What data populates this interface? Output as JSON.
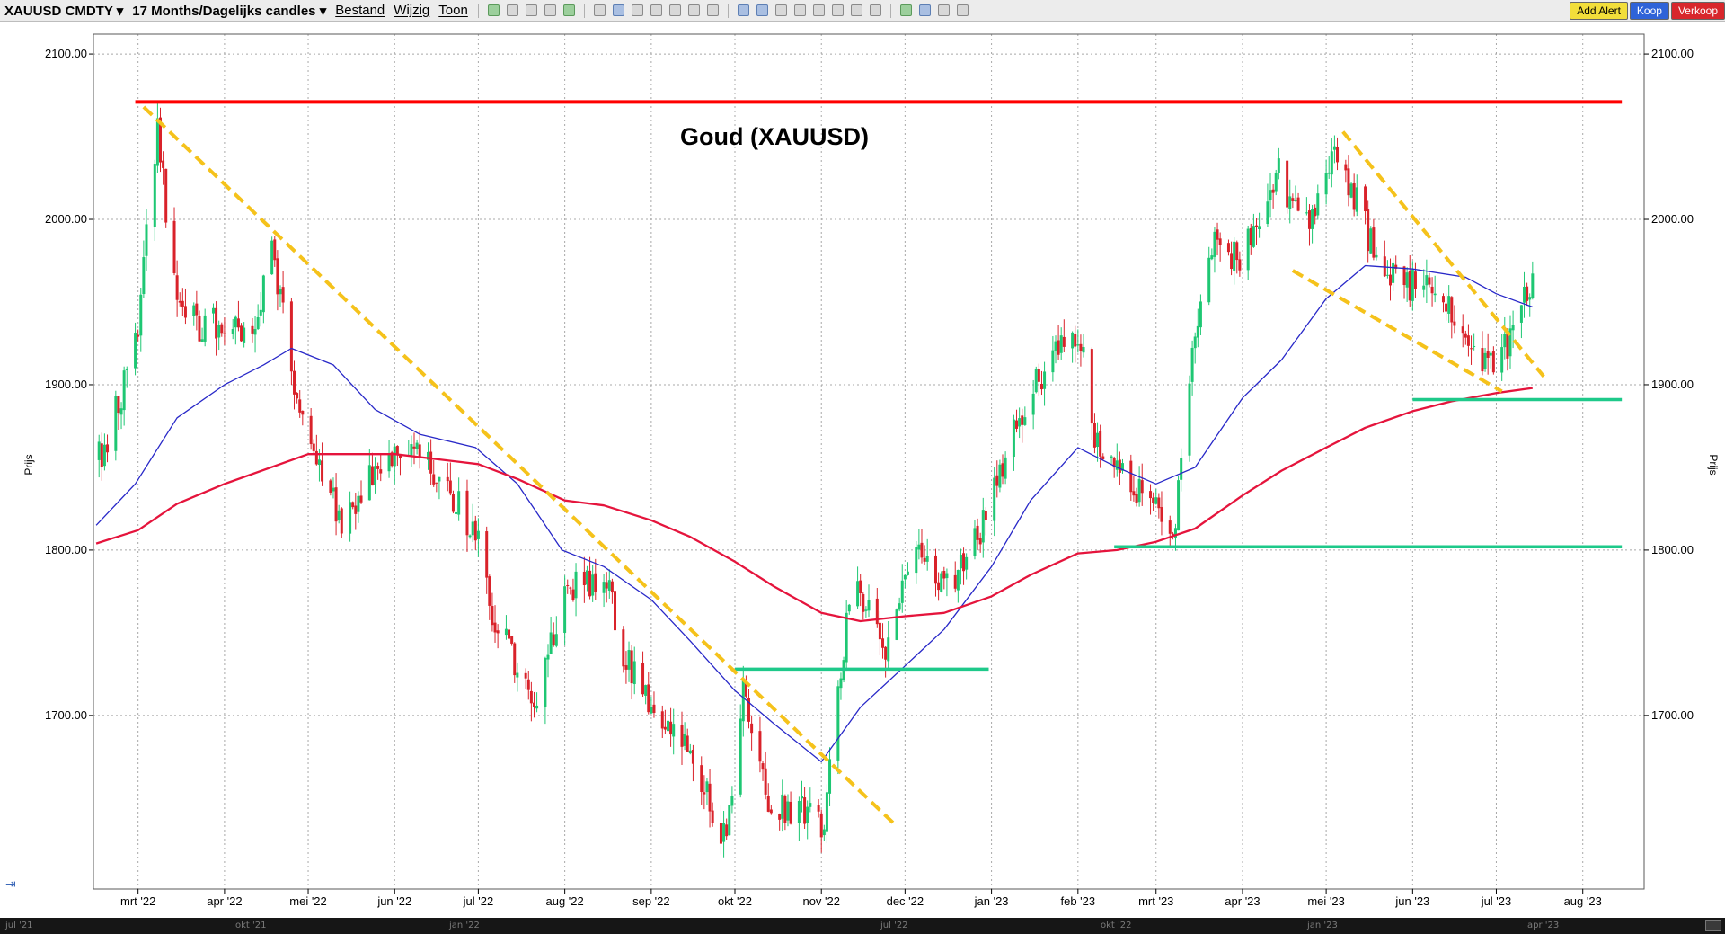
{
  "toolbar": {
    "symbol": "XAUUSD CMDTY",
    "period": "17 Months/Dagelijks candles",
    "menus": [
      "Bestand",
      "Wijzig",
      "Toon"
    ],
    "add_alert": "Add Alert",
    "buy": "Koop",
    "sell": "Verkoop"
  },
  "colors": {
    "up_candle": "#1ec773",
    "down_candle": "#d9222a",
    "ma_short": "#2828c8",
    "ma_long": "#e5143c",
    "resistance": "#ff0000",
    "trendline": "#f5c21b",
    "support": "#1ec98a"
  },
  "navigator": {
    "labels": [
      "jul '21",
      "okt '21",
      "jan '22",
      "jul '22",
      "okt '22",
      "jan '23",
      "apr '23"
    ]
  },
  "chart_data": {
    "type": "candlestick",
    "title": "Goud (XAUUSD)",
    "ylabel": "Prijs",
    "ylim": [
      1595,
      2112
    ],
    "yticks": [
      1700,
      1800,
      1900,
      2000,
      2100
    ],
    "ytick_labels": [
      "1700.00",
      "1800.00",
      "1900.00",
      "2000.00",
      "2100.00"
    ],
    "xrange": [
      "2022-02-13",
      "2023-08-23"
    ],
    "x_ticks": [
      {
        "date": "2022-03-01",
        "label": "mrt '22"
      },
      {
        "date": "2022-04-01",
        "label": "apr '22"
      },
      {
        "date": "2022-05-01",
        "label": "mei '22"
      },
      {
        "date": "2022-06-01",
        "label": "jun '22"
      },
      {
        "date": "2022-07-01",
        "label": "jul '22"
      },
      {
        "date": "2022-08-01",
        "label": "aug '22"
      },
      {
        "date": "2022-09-01",
        "label": "sep '22"
      },
      {
        "date": "2022-10-01",
        "label": "okt '22"
      },
      {
        "date": "2022-11-01",
        "label": "nov '22"
      },
      {
        "date": "2022-12-01",
        "label": "dec '22"
      },
      {
        "date": "2023-01-01",
        "label": "jan '23"
      },
      {
        "date": "2023-02-01",
        "label": "feb '23"
      },
      {
        "date": "2023-03-01",
        "label": "mrt '23"
      },
      {
        "date": "2023-04-01",
        "label": "apr '23"
      },
      {
        "date": "2023-05-01",
        "label": "mei '23"
      },
      {
        "date": "2023-06-01",
        "label": "jun '23"
      },
      {
        "date": "2023-07-01",
        "label": "jul '23"
      },
      {
        "date": "2023-08-01",
        "label": "aug '23"
      }
    ],
    "grid": true,
    "price_path": [
      [
        "2022-02-15",
        1855
      ],
      [
        "2022-02-24",
        1900
      ],
      [
        "2022-03-01",
        1940
      ],
      [
        "2022-03-08",
        2055
      ],
      [
        "2022-03-14",
        1960
      ],
      [
        "2022-03-22",
        1935
      ],
      [
        "2022-03-31",
        1940
      ],
      [
        "2022-04-12",
        1930
      ],
      [
        "2022-04-18",
        1985
      ],
      [
        "2022-04-25",
        1910
      ],
      [
        "2022-05-02",
        1865
      ],
      [
        "2022-05-13",
        1815
      ],
      [
        "2022-05-25",
        1850
      ],
      [
        "2022-06-07",
        1860
      ],
      [
        "2022-06-21",
        1835
      ],
      [
        "2022-06-30",
        1810
      ],
      [
        "2022-07-05",
        1765
      ],
      [
        "2022-07-21",
        1710
      ],
      [
        "2022-08-01",
        1775
      ],
      [
        "2022-08-15",
        1785
      ],
      [
        "2022-08-22",
        1740
      ],
      [
        "2022-09-01",
        1705
      ],
      [
        "2022-09-16",
        1675
      ],
      [
        "2022-09-28",
        1620
      ],
      [
        "2022-10-04",
        1715
      ],
      [
        "2022-10-14",
        1645
      ],
      [
        "2022-10-24",
        1645
      ],
      [
        "2022-11-02",
        1635
      ],
      [
        "2022-11-04",
        1675
      ],
      [
        "2022-11-10",
        1755
      ],
      [
        "2022-11-15",
        1775
      ],
      [
        "2022-11-23",
        1735
      ],
      [
        "2022-12-05",
        1805
      ],
      [
        "2022-12-15",
        1775
      ],
      [
        "2022-12-30",
        1820
      ],
      [
        "2023-01-10",
        1880
      ],
      [
        "2023-01-26",
        1930
      ],
      [
        "2023-02-02",
        1925
      ],
      [
        "2023-02-07",
        1870
      ],
      [
        "2023-02-28",
        1825
      ],
      [
        "2023-03-08",
        1815
      ],
      [
        "2023-03-13",
        1910
      ],
      [
        "2023-03-20",
        1985
      ],
      [
        "2023-03-31",
        1975
      ],
      [
        "2023-04-13",
        2030
      ],
      [
        "2023-04-25",
        1990
      ],
      [
        "2023-05-04",
        2050
      ],
      [
        "2023-05-11",
        2015
      ],
      [
        "2023-05-19",
        1975
      ],
      [
        "2023-05-30",
        1960
      ],
      [
        "2023-06-09",
        1960
      ],
      [
        "2023-06-22",
        1920
      ],
      [
        "2023-06-29",
        1910
      ],
      [
        "2023-07-05",
        1925
      ],
      [
        "2023-07-12",
        1955
      ],
      [
        "2023-07-14",
        1960
      ]
    ],
    "moving_averages": [
      {
        "points": [
          [
            "2022-02-14",
            1815
          ],
          [
            "2022-02-28",
            1840
          ],
          [
            "2022-03-15",
            1880
          ],
          [
            "2022-04-01",
            1900
          ],
          [
            "2022-04-15",
            1912
          ],
          [
            "2022-04-25",
            1922
          ],
          [
            "2022-05-10",
            1912
          ],
          [
            "2022-05-25",
            1885
          ],
          [
            "2022-06-10",
            1870
          ],
          [
            "2022-06-30",
            1862
          ],
          [
            "2022-07-15",
            1840
          ],
          [
            "2022-07-31",
            1800
          ],
          [
            "2022-08-15",
            1790
          ],
          [
            "2022-09-01",
            1770
          ],
          [
            "2022-09-15",
            1745
          ],
          [
            "2022-10-01",
            1715
          ],
          [
            "2022-10-15",
            1695
          ],
          [
            "2022-11-01",
            1672
          ],
          [
            "2022-11-15",
            1705
          ],
          [
            "2022-12-01",
            1730
          ],
          [
            "2022-12-15",
            1752
          ],
          [
            "2023-01-01",
            1790
          ],
          [
            "2023-01-15",
            1830
          ],
          [
            "2023-02-01",
            1862
          ],
          [
            "2023-02-15",
            1850
          ],
          [
            "2023-03-01",
            1840
          ],
          [
            "2023-03-15",
            1850
          ],
          [
            "2023-04-01",
            1892
          ],
          [
            "2023-04-15",
            1915
          ],
          [
            "2023-05-01",
            1952
          ],
          [
            "2023-05-15",
            1972
          ],
          [
            "2023-06-01",
            1970
          ],
          [
            "2023-06-20",
            1965
          ],
          [
            "2023-07-01",
            1955
          ],
          [
            "2023-07-14",
            1947
          ]
        ]
      },
      {
        "points": [
          [
            "2022-02-14",
            1804
          ],
          [
            "2022-03-01",
            1812
          ],
          [
            "2022-03-15",
            1828
          ],
          [
            "2022-04-01",
            1840
          ],
          [
            "2022-05-01",
            1858
          ],
          [
            "2022-06-01",
            1858
          ],
          [
            "2022-07-01",
            1852
          ],
          [
            "2022-07-15",
            1843
          ],
          [
            "2022-08-01",
            1830
          ],
          [
            "2022-08-15",
            1827
          ],
          [
            "2022-09-01",
            1818
          ],
          [
            "2022-09-15",
            1808
          ],
          [
            "2022-10-01",
            1793
          ],
          [
            "2022-10-15",
            1778
          ],
          [
            "2022-11-01",
            1762
          ],
          [
            "2022-11-15",
            1757
          ],
          [
            "2022-12-01",
            1760
          ],
          [
            "2022-12-15",
            1762
          ],
          [
            "2023-01-01",
            1772
          ],
          [
            "2023-01-15",
            1785
          ],
          [
            "2023-02-01",
            1798
          ],
          [
            "2023-02-15",
            1800
          ],
          [
            "2023-03-01",
            1805
          ],
          [
            "2023-03-15",
            1813
          ],
          [
            "2023-04-01",
            1833
          ],
          [
            "2023-04-15",
            1848
          ],
          [
            "2023-05-01",
            1862
          ],
          [
            "2023-05-15",
            1874
          ],
          [
            "2023-06-01",
            1884
          ],
          [
            "2023-06-15",
            1890
          ],
          [
            "2023-07-01",
            1895
          ],
          [
            "2023-07-14",
            1898
          ]
        ]
      }
    ],
    "annotations": {
      "horizontal_lines": [
        {
          "name": "resistance-line",
          "kind": "resistance",
          "y": 2071,
          "x_from": "2022-02-28",
          "x_to": "2023-08-15"
        },
        {
          "name": "support-line-1",
          "kind": "support",
          "y": 1728,
          "x_from": "2022-10-01",
          "x_to": "2022-12-31"
        },
        {
          "name": "support-line-2",
          "kind": "support",
          "y": 1802,
          "x_from": "2023-02-14",
          "x_to": "2023-08-15"
        },
        {
          "name": "support-line-3",
          "kind": "support",
          "y": 1891,
          "x_from": "2023-06-01",
          "x_to": "2023-08-15"
        }
      ],
      "trendlines": [
        {
          "name": "trendline-1",
          "from": [
            "2022-03-03",
            2068
          ],
          "to": [
            "2022-11-28",
            1633
          ]
        },
        {
          "name": "trendline-2",
          "from": [
            "2023-05-07",
            2053
          ],
          "to": [
            "2023-07-18",
            1905
          ]
        },
        {
          "name": "trendline-3",
          "from": [
            "2023-04-19",
            1969
          ],
          "to": [
            "2023-07-03",
            1896
          ]
        }
      ]
    }
  }
}
